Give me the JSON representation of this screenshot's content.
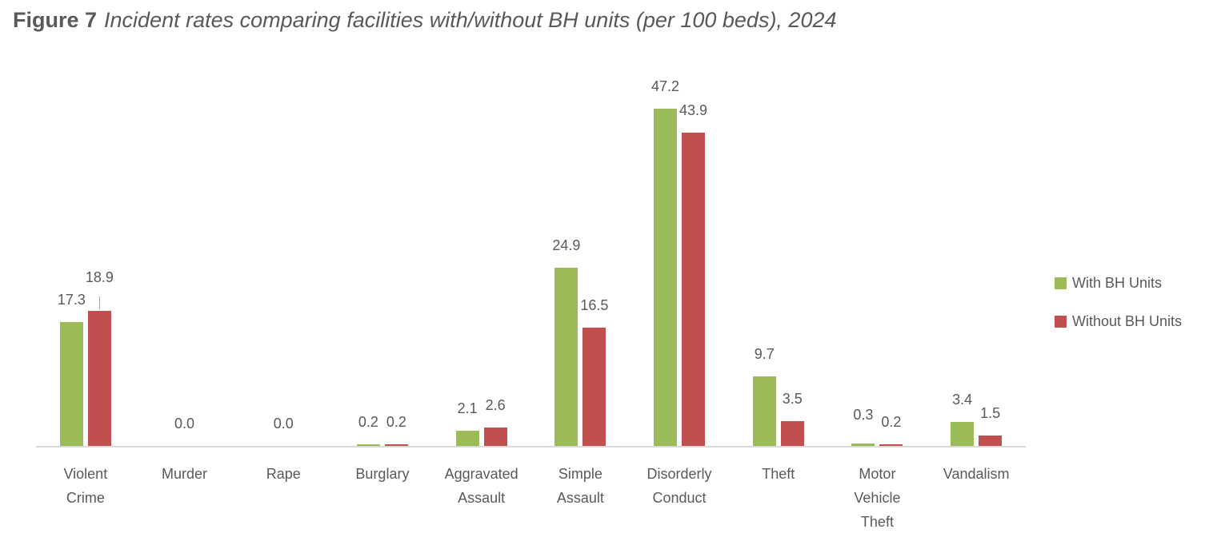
{
  "figure": {
    "label": "Figure 7",
    "title": "Incident rates comparing facilities with/without BH units (per 100 beds), 2024"
  },
  "chart_data": {
    "type": "bar",
    "title": "Figure 7 Incident rates comparing facilities with/without BH units (per 100 beds), 2024",
    "categories": [
      "Violent Crime",
      "Murder",
      "Rape",
      "Burglary",
      "Aggravated Assault",
      "Simple Assault",
      "Disorderly Conduct",
      "Theft",
      "Motor Vehicle Theft",
      "Vandalism"
    ],
    "series": [
      {
        "name": "With BH Units",
        "color": "#9BBB59",
        "values": [
          17.3,
          0.0,
          0.0,
          0.2,
          2.1,
          24.9,
          47.2,
          9.7,
          0.3,
          3.4
        ]
      },
      {
        "name": "Without BH Units",
        "color": "#C0504D",
        "values": [
          18.9,
          0.0,
          0.0,
          0.2,
          2.6,
          16.5,
          43.9,
          3.5,
          0.2,
          1.5
        ]
      }
    ],
    "value_label_format": "0.0",
    "zero_pair_label": "0.0",
    "xlabel": "",
    "ylabel": "",
    "ylim": [
      0,
      50
    ],
    "grid": false,
    "y_axis_visible": false,
    "legend_position": "right",
    "colors": {
      "axis_line": "#D9D9D9",
      "text": "#595959",
      "leader_line": "#A6A6A6"
    }
  }
}
